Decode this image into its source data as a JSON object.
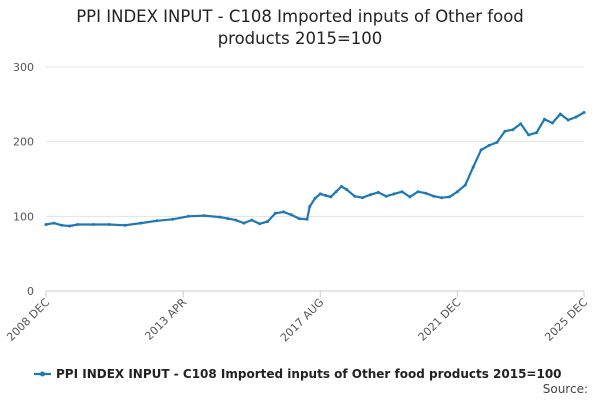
{
  "chart_data": {
    "type": "line",
    "title_lines": [
      "PPI INDEX INPUT - C108 Imported inputs of Other food",
      "products 2015=100"
    ],
    "xlabel": "",
    "ylabel": "",
    "ylim": [
      0,
      300
    ],
    "y_ticks": [
      "0",
      "100",
      "200",
      "300"
    ],
    "x_range": [
      "2008 DEC",
      "2025 DEC"
    ],
    "x_ticks": [
      "2008 DEC",
      "2013 APR",
      "2017 AUG",
      "2021 DEC",
      "2025 DEC"
    ],
    "grid": true,
    "legend_position": "bottom",
    "series": [
      {
        "name": "PPI INDEX INPUT - C108 Imported inputs of Other food products 2015=100",
        "color": "#1f78b4",
        "points": [
          [
            "2008-12",
            89
          ],
          [
            "2009-03",
            91
          ],
          [
            "2009-06",
            88
          ],
          [
            "2009-09",
            87
          ],
          [
            "2009-12",
            89
          ],
          [
            "2010-06",
            89
          ],
          [
            "2010-12",
            89
          ],
          [
            "2011-06",
            88
          ],
          [
            "2011-12",
            91
          ],
          [
            "2012-06",
            94
          ],
          [
            "2012-12",
            96
          ],
          [
            "2013-06",
            100
          ],
          [
            "2013-12",
            101
          ],
          [
            "2014-06",
            99
          ],
          [
            "2014-09",
            97
          ],
          [
            "2014-12",
            95
          ],
          [
            "2015-03",
            91
          ],
          [
            "2015-06",
            95
          ],
          [
            "2015-09",
            90
          ],
          [
            "2015-12",
            93
          ],
          [
            "2016-03",
            104
          ],
          [
            "2016-06",
            106
          ],
          [
            "2016-09",
            102
          ],
          [
            "2016-12",
            97
          ],
          [
            "2017-03",
            96
          ],
          [
            "2017-04",
            113
          ],
          [
            "2017-06",
            124
          ],
          [
            "2017-08",
            130
          ],
          [
            "2017-10",
            128
          ],
          [
            "2017-12",
            126
          ],
          [
            "2018-02",
            133
          ],
          [
            "2018-04",
            140
          ],
          [
            "2018-06",
            136
          ],
          [
            "2018-09",
            127
          ],
          [
            "2018-12",
            125
          ],
          [
            "2019-03",
            129
          ],
          [
            "2019-06",
            132
          ],
          [
            "2019-09",
            127
          ],
          [
            "2019-12",
            130
          ],
          [
            "2020-03",
            133
          ],
          [
            "2020-06",
            126
          ],
          [
            "2020-09",
            133
          ],
          [
            "2020-12",
            131
          ],
          [
            "2021-03",
            127
          ],
          [
            "2021-06",
            125
          ],
          [
            "2021-09",
            126
          ],
          [
            "2021-12",
            133
          ],
          [
            "2022-03",
            142
          ],
          [
            "2022-06",
            166
          ],
          [
            "2022-09",
            189
          ],
          [
            "2022-12",
            195
          ],
          [
            "2023-03",
            199
          ],
          [
            "2023-06",
            214
          ],
          [
            "2023-09",
            216
          ],
          [
            "2023-12",
            224
          ],
          [
            "2024-03",
            209
          ],
          [
            "2024-06",
            212
          ],
          [
            "2024-09",
            230
          ],
          [
            "2024-12",
            225
          ],
          [
            "2025-03",
            237
          ],
          [
            "2025-06",
            229
          ],
          [
            "2025-09",
            233
          ],
          [
            "2025-12",
            239
          ]
        ]
      }
    ],
    "source_label": "Source:"
  }
}
